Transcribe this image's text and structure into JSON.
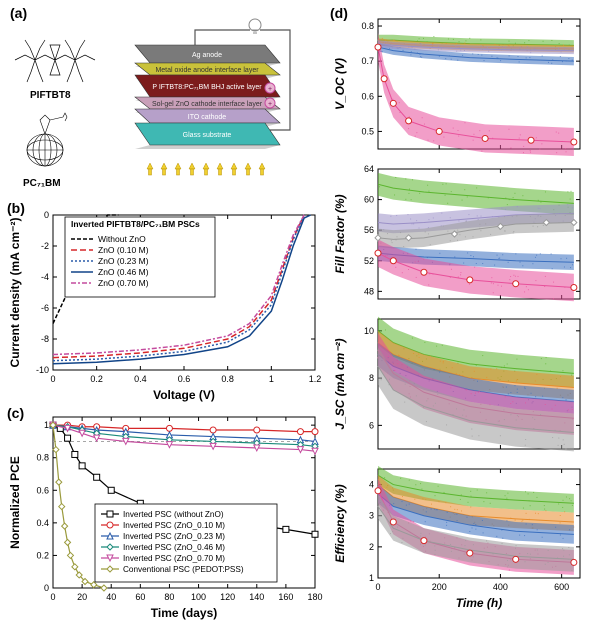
{
  "labels": {
    "a": "(a)",
    "b": "(b)",
    "c": "(c)",
    "d": "(d)"
  },
  "molecules": {
    "pifbt8": "PIFTBT8",
    "pc71bm": "PC₇₁BM"
  },
  "stack": {
    "layers": [
      {
        "name": "Ag anode",
        "color": "#7a7a7a",
        "h": 18
      },
      {
        "name": "Metal oxide anode interface layer",
        "color": "#c9c23a",
        "h": 12
      },
      {
        "name": "P IFTBT8:PC₇₁BM BHJ active layer",
        "color": "#7c1c1c",
        "h": 22
      },
      {
        "name": "Sol-gel ZnO cathode interface layer",
        "color": "#c9a0b9",
        "h": 12
      },
      {
        "name": "ITO cathode",
        "color": "#b6a0c9",
        "h": 14
      },
      {
        "name": "Glass substrate",
        "color": "#3fb8b3",
        "h": 22
      }
    ],
    "arrow_color": "#f0d030"
  },
  "panel_b": {
    "title": "Inverted PIFTBT8/PC₇₁BM PSCs",
    "xlabel": "Voltage (V)",
    "ylabel": "Current density (mA cm⁻²)",
    "xlim": [
      0,
      1.2
    ],
    "ylim": [
      -10,
      0
    ],
    "xticks": [
      0.0,
      0.2,
      0.4,
      0.6,
      0.8,
      1.0,
      1.2
    ],
    "yticks": [
      -10,
      -8,
      -6,
      -4,
      -2,
      0
    ],
    "label_fontsize": 12,
    "tick_fontsize": 9,
    "grid_color": "#e0e0e0",
    "series": [
      {
        "name": "Without ZnO",
        "color": "#000000",
        "dash": "4,2",
        "x": [
          0,
          0.05,
          0.1,
          0.15,
          0.2,
          0.25,
          0.3
        ],
        "y": [
          -7,
          -5.5,
          -4,
          -2.5,
          -1,
          0,
          0
        ]
      },
      {
        "name": "ZnO (0.10 M)",
        "color": "#d62728",
        "dash": "6,3",
        "x": [
          0,
          0.2,
          0.4,
          0.6,
          0.8,
          0.9,
          1.0,
          1.05,
          1.1,
          1.15
        ],
        "y": [
          -9.2,
          -9.1,
          -8.9,
          -8.6,
          -8.0,
          -7.2,
          -5.5,
          -3.5,
          -1.5,
          0
        ]
      },
      {
        "name": "ZnO (0.23 M)",
        "color": "#2a5caa",
        "dash": "2,2",
        "x": [
          0,
          0.2,
          0.4,
          0.6,
          0.8,
          0.9,
          1.0,
          1.05,
          1.1,
          1.15
        ],
        "y": [
          -9.4,
          -9.3,
          -9.1,
          -8.8,
          -8.2,
          -7.4,
          -5.8,
          -3.7,
          -1.6,
          0
        ]
      },
      {
        "name": "ZnO (0.46 M)",
        "color": "#114488",
        "dash": null,
        "x": [
          0,
          0.2,
          0.4,
          0.6,
          0.8,
          0.9,
          1.0,
          1.05,
          1.1,
          1.15,
          1.18
        ],
        "y": [
          -9.6,
          -9.5,
          -9.3,
          -9.0,
          -8.5,
          -7.8,
          -6.2,
          -4.2,
          -2.0,
          -0.2,
          0
        ]
      },
      {
        "name": "ZnO (0.70 M)",
        "color": "#c44b9e",
        "dash": "5,2,2,2",
        "x": [
          0,
          0.2,
          0.4,
          0.6,
          0.8,
          0.9,
          1.0,
          1.05,
          1.1,
          1.15
        ],
        "y": [
          -9.0,
          -8.9,
          -8.7,
          -8.4,
          -7.8,
          -7.0,
          -5.2,
          -3.2,
          -1.3,
          0
        ]
      }
    ]
  },
  "panel_c": {
    "xlabel": "Time (days)",
    "ylabel": "Normalized PCE",
    "xlim": [
      0,
      180
    ],
    "ylim": [
      0,
      1.05
    ],
    "xticks": [
      0,
      20,
      40,
      60,
      80,
      100,
      120,
      140,
      160,
      180
    ],
    "yticks": [
      0.0,
      0.2,
      0.4,
      0.6,
      0.8,
      1.0
    ],
    "ref_line": 0.9,
    "ref_color": "#999999",
    "series": [
      {
        "name": "Inverted PSC (without ZnO)",
        "color": "#000000",
        "marker": "square",
        "x": [
          0,
          5,
          10,
          15,
          20,
          30,
          40,
          60,
          80,
          100,
          130,
          160,
          180
        ],
        "y": [
          1.0,
          0.98,
          0.92,
          0.82,
          0.75,
          0.68,
          0.6,
          0.52,
          0.48,
          0.45,
          0.4,
          0.36,
          0.33
        ]
      },
      {
        "name": "Inverted PSC (ZnO_0.10 M)",
        "color": "#d62728",
        "marker": "circle",
        "x": [
          0,
          10,
          20,
          30,
          50,
          80,
          110,
          140,
          170,
          180
        ],
        "y": [
          1.0,
          1.0,
          0.99,
          0.99,
          0.98,
          0.98,
          0.97,
          0.97,
          0.96,
          0.96
        ]
      },
      {
        "name": "Inverted PSC (ZnO_0.23 M)",
        "color": "#2a5caa",
        "marker": "triangle",
        "x": [
          0,
          10,
          20,
          30,
          50,
          80,
          110,
          140,
          170,
          180
        ],
        "y": [
          1.0,
          0.99,
          0.98,
          0.97,
          0.96,
          0.94,
          0.93,
          0.92,
          0.91,
          0.9
        ]
      },
      {
        "name": "Inverted PSC (ZnO_0.46 M)",
        "color": "#1a8a7a",
        "marker": "diamond",
        "x": [
          0,
          10,
          20,
          30,
          50,
          80,
          110,
          140,
          170,
          180
        ],
        "y": [
          1.0,
          0.99,
          0.97,
          0.95,
          0.93,
          0.91,
          0.9,
          0.89,
          0.88,
          0.87
        ]
      },
      {
        "name": "Inverted PSC (ZnO_0.70 M)",
        "color": "#c44b9e",
        "marker": "tri-down",
        "x": [
          0,
          10,
          20,
          30,
          50,
          80,
          110,
          140,
          170,
          180
        ],
        "y": [
          1.0,
          0.98,
          0.95,
          0.92,
          0.9,
          0.88,
          0.87,
          0.86,
          0.85,
          0.84
        ]
      },
      {
        "name": "Conventional PSC (PEDOT:PSS)",
        "color": "#9a9a3c",
        "marker": "diamond",
        "x": [
          0,
          2,
          4,
          6,
          8,
          10,
          12,
          15,
          18,
          22,
          28,
          35
        ],
        "y": [
          1.0,
          0.85,
          0.65,
          0.5,
          0.38,
          0.28,
          0.2,
          0.13,
          0.08,
          0.04,
          0.02,
          0.0
        ]
      }
    ]
  },
  "panel_d": {
    "xlabel": "Time (h)",
    "xticks": [
      0,
      200,
      400,
      600
    ],
    "xlim": [
      0,
      660
    ],
    "series_colors": {
      "green": "#5bb52e",
      "pink": "#e84f9a",
      "purple": "#9a8fc7",
      "orange": "#e88b2a",
      "blue": "#3a6fbf",
      "gray": "#9a9a9a",
      "red_open": "#d62728"
    },
    "charts": [
      {
        "ylabel": "V_OC (V)",
        "italic": true,
        "ylim": [
          0.45,
          0.82
        ],
        "yticks": [
          0.5,
          0.6,
          0.7,
          0.8
        ],
        "bands": [
          {
            "color": "green",
            "x": [
              0,
              50,
              150,
              300,
              450,
              640
            ],
            "y": [
              0.76,
              0.76,
              0.755,
              0.75,
              0.748,
              0.745
            ],
            "spread": 0.015
          },
          {
            "color": "orange",
            "x": [
              0,
              50,
              150,
              300,
              450,
              640
            ],
            "y": [
              0.755,
              0.75,
              0.745,
              0.74,
              0.738,
              0.735
            ],
            "spread": 0.01
          },
          {
            "color": "blue",
            "x": [
              0,
              50,
              150,
              300,
              450,
              640
            ],
            "y": [
              0.74,
              0.73,
              0.72,
              0.71,
              0.705,
              0.7
            ],
            "spread": 0.012
          },
          {
            "color": "pink",
            "x": [
              0,
              20,
              50,
              100,
              200,
              350,
              500,
              640
            ],
            "y": [
              0.74,
              0.65,
              0.58,
              0.53,
              0.5,
              0.48,
              0.475,
              0.47
            ],
            "spread": 0.04
          },
          {
            "color": "purple",
            "x": [
              0,
              50,
              150,
              300,
              450,
              640
            ],
            "y": [
              0.75,
              0.745,
              0.74,
              0.735,
              0.732,
              0.73
            ],
            "spread": 0.01
          }
        ],
        "markers": [
          {
            "color": "red_open",
            "shape": "circle",
            "x": [
              0,
              20,
              50,
              100,
              200,
              350,
              500,
              640
            ],
            "y": [
              0.74,
              0.65,
              0.58,
              0.53,
              0.5,
              0.48,
              0.475,
              0.47
            ]
          }
        ]
      },
      {
        "ylabel": "Fill Factor (%)",
        "italic": true,
        "ylim": [
          47,
          64
        ],
        "yticks": [
          48,
          52,
          56,
          60,
          64
        ],
        "bands": [
          {
            "color": "green",
            "x": [
              0,
              50,
              150,
              300,
              450,
              640
            ],
            "y": [
              62,
              61.5,
              61,
              60.5,
              60,
              59.5
            ],
            "spread": 1.5
          },
          {
            "color": "purple",
            "x": [
              0,
              50,
              150,
              300,
              450,
              640
            ],
            "y": [
              57,
              56.8,
              57,
              57.5,
              58,
              58.2
            ],
            "spread": 1.2
          },
          {
            "color": "gray",
            "x": [
              0,
              50,
              150,
              300,
              450,
              640
            ],
            "y": [
              55,
              54.8,
              55,
              56,
              56.8,
              57
            ],
            "spread": 1.2
          },
          {
            "color": "blue",
            "x": [
              0,
              50,
              150,
              300,
              450,
              640
            ],
            "y": [
              53,
              52.8,
              52.5,
              52.3,
              52,
              51.8
            ],
            "spread": 1.0
          },
          {
            "color": "pink",
            "x": [
              0,
              50,
              150,
              300,
              450,
              640
            ],
            "y": [
              53,
              52,
              50.5,
              49.5,
              49,
              48.5
            ],
            "spread": 1.8
          }
        ],
        "markers": [
          {
            "color": "red_open",
            "shape": "circle",
            "x": [
              0,
              50,
              150,
              300,
              450,
              640
            ],
            "y": [
              53,
              52,
              50.5,
              49.5,
              49,
              48.5
            ]
          },
          {
            "color": "gray",
            "shape": "diamond",
            "x": [
              0,
              100,
              250,
              400,
              550,
              640
            ],
            "y": [
              55,
              55,
              55.5,
              56.5,
              57,
              57
            ]
          }
        ]
      },
      {
        "ylabel": "J_SC (mA cm⁻²)",
        "italic": true,
        "ylim": [
          5,
          10.5
        ],
        "yticks": [
          6,
          8,
          10
        ],
        "bands": [
          {
            "color": "green",
            "x": [
              0,
              50,
              150,
              300,
              450,
              640
            ],
            "y": [
              10,
              9.5,
              9.0,
              8.6,
              8.4,
              8.2
            ],
            "spread": 0.6
          },
          {
            "color": "orange",
            "x": [
              0,
              50,
              150,
              300,
              450,
              640
            ],
            "y": [
              9.5,
              9.0,
              8.5,
              8.0,
              7.8,
              7.6
            ],
            "spread": 0.5
          },
          {
            "color": "blue",
            "x": [
              0,
              50,
              150,
              300,
              450,
              640
            ],
            "y": [
              9.0,
              8.5,
              8.0,
              7.5,
              7.2,
              7.0
            ],
            "spread": 0.5
          },
          {
            "color": "pink",
            "x": [
              0,
              50,
              150,
              300,
              450,
              640
            ],
            "y": [
              9.2,
              8.2,
              7.4,
              6.8,
              6.5,
              6.3
            ],
            "spread": 0.7
          },
          {
            "color": "gray",
            "x": [
              0,
              50,
              150,
              300,
              450,
              640
            ],
            "y": [
              8.5,
              7.5,
              6.8,
              6.2,
              5.9,
              5.7
            ],
            "spread": 0.8
          }
        ],
        "markers": []
      },
      {
        "ylabel": "Efficiency (%)",
        "italic": true,
        "ylim": [
          1,
          4.5
        ],
        "yticks": [
          1,
          2,
          3,
          4
        ],
        "bands": [
          {
            "color": "green",
            "x": [
              0,
              50,
              150,
              300,
              450,
              640
            ],
            "y": [
              4.3,
              4.0,
              3.8,
              3.6,
              3.5,
              3.4
            ],
            "spread": 0.3
          },
          {
            "color": "orange",
            "x": [
              0,
              50,
              150,
              300,
              450,
              640
            ],
            "y": [
              4.0,
              3.6,
              3.3,
              3.0,
              2.9,
              2.8
            ],
            "spread": 0.3
          },
          {
            "color": "blue",
            "x": [
              0,
              50,
              150,
              300,
              450,
              640
            ],
            "y": [
              3.7,
              3.3,
              3.0,
              2.7,
              2.5,
              2.4
            ],
            "spread": 0.3
          },
          {
            "color": "pink",
            "x": [
              0,
              50,
              150,
              300,
              450,
              640
            ],
            "y": [
              3.8,
              2.8,
              2.2,
              1.8,
              1.6,
              1.5
            ],
            "spread": 0.4
          },
          {
            "color": "gray",
            "x": [
              0,
              50,
              150,
              300,
              450,
              640
            ],
            "y": [
              3.3,
              2.6,
              2.2,
              1.9,
              1.7,
              1.6
            ],
            "spread": 0.4
          }
        ],
        "markers": [
          {
            "color": "red_open",
            "shape": "circle",
            "x": [
              0,
              50,
              150,
              300,
              450,
              640
            ],
            "y": [
              3.8,
              2.8,
              2.2,
              1.8,
              1.6,
              1.5
            ]
          }
        ]
      }
    ]
  }
}
